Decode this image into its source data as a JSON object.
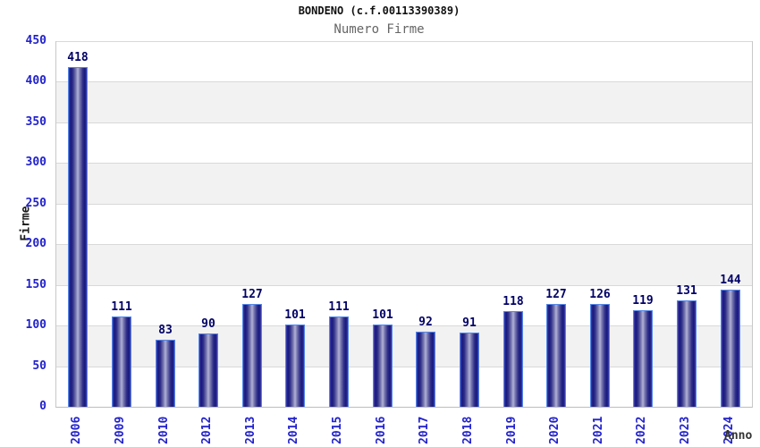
{
  "header": {
    "title": "BONDENO (c.f.00113390389)",
    "subtitle": "Numero Firme"
  },
  "chart_data": {
    "type": "bar",
    "title": "BONDENO (c.f.00113390389)",
    "subtitle": "Numero Firme",
    "xlabel": "Anno",
    "ylabel": "Firme",
    "categories": [
      "2006",
      "2009",
      "2010",
      "2012",
      "2013",
      "2014",
      "2015",
      "2016",
      "2017",
      "2018",
      "2019",
      "2020",
      "2021",
      "2022",
      "2023",
      "2024"
    ],
    "values": [
      418,
      111,
      83,
      90,
      127,
      101,
      111,
      101,
      92,
      91,
      118,
      127,
      126,
      119,
      131,
      144
    ],
    "ylim": [
      0,
      450
    ],
    "ytick_interval": 50,
    "yticks": [
      0,
      50,
      100,
      150,
      200,
      250,
      300,
      350,
      400,
      450
    ],
    "grid": "horizontal-alternating-bands",
    "legend_position": "none",
    "colors": {
      "bar_dark": "#18187c",
      "bar_light": "#b2b2d8",
      "bar_border": "#5586e8",
      "axis_tick_label": "#2222cc",
      "value_label": "#000066",
      "band_gray": "#f2f2f2",
      "grid_line": "#d9d9d9",
      "title_color": "#111111",
      "subtitle_color": "#666666"
    }
  }
}
